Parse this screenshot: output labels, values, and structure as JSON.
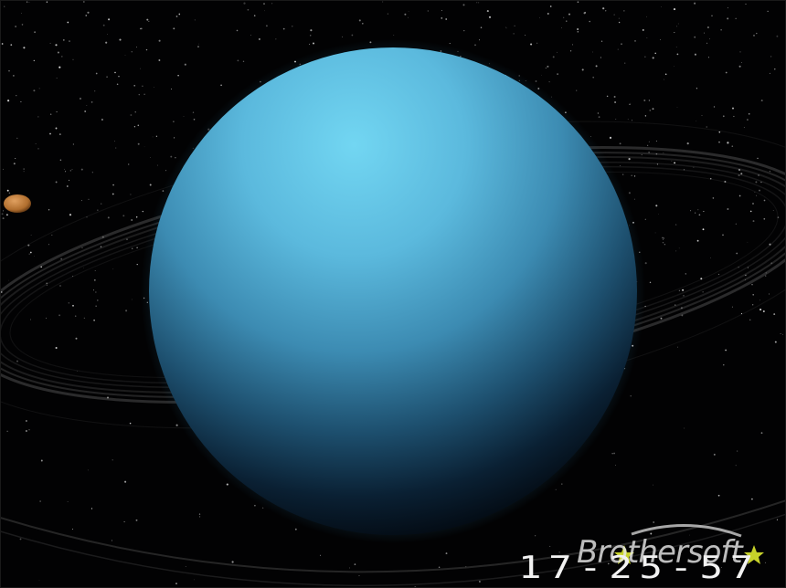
{
  "scene": {
    "planet": "blue-gas-giant",
    "moon": "small-orange-moon",
    "background": "starfield",
    "rings": "faint-grey-rings"
  },
  "clock": {
    "time": "17-25-57"
  },
  "watermark": {
    "text": "Brothersoft"
  },
  "colors": {
    "planet_light": "#6fd0ee",
    "planet_mid": "#3a8fb4",
    "planet_dark": "#04111c",
    "moon": "#c8823e",
    "ring": "#9a9a9a",
    "star_logo": "#c6d12a"
  }
}
